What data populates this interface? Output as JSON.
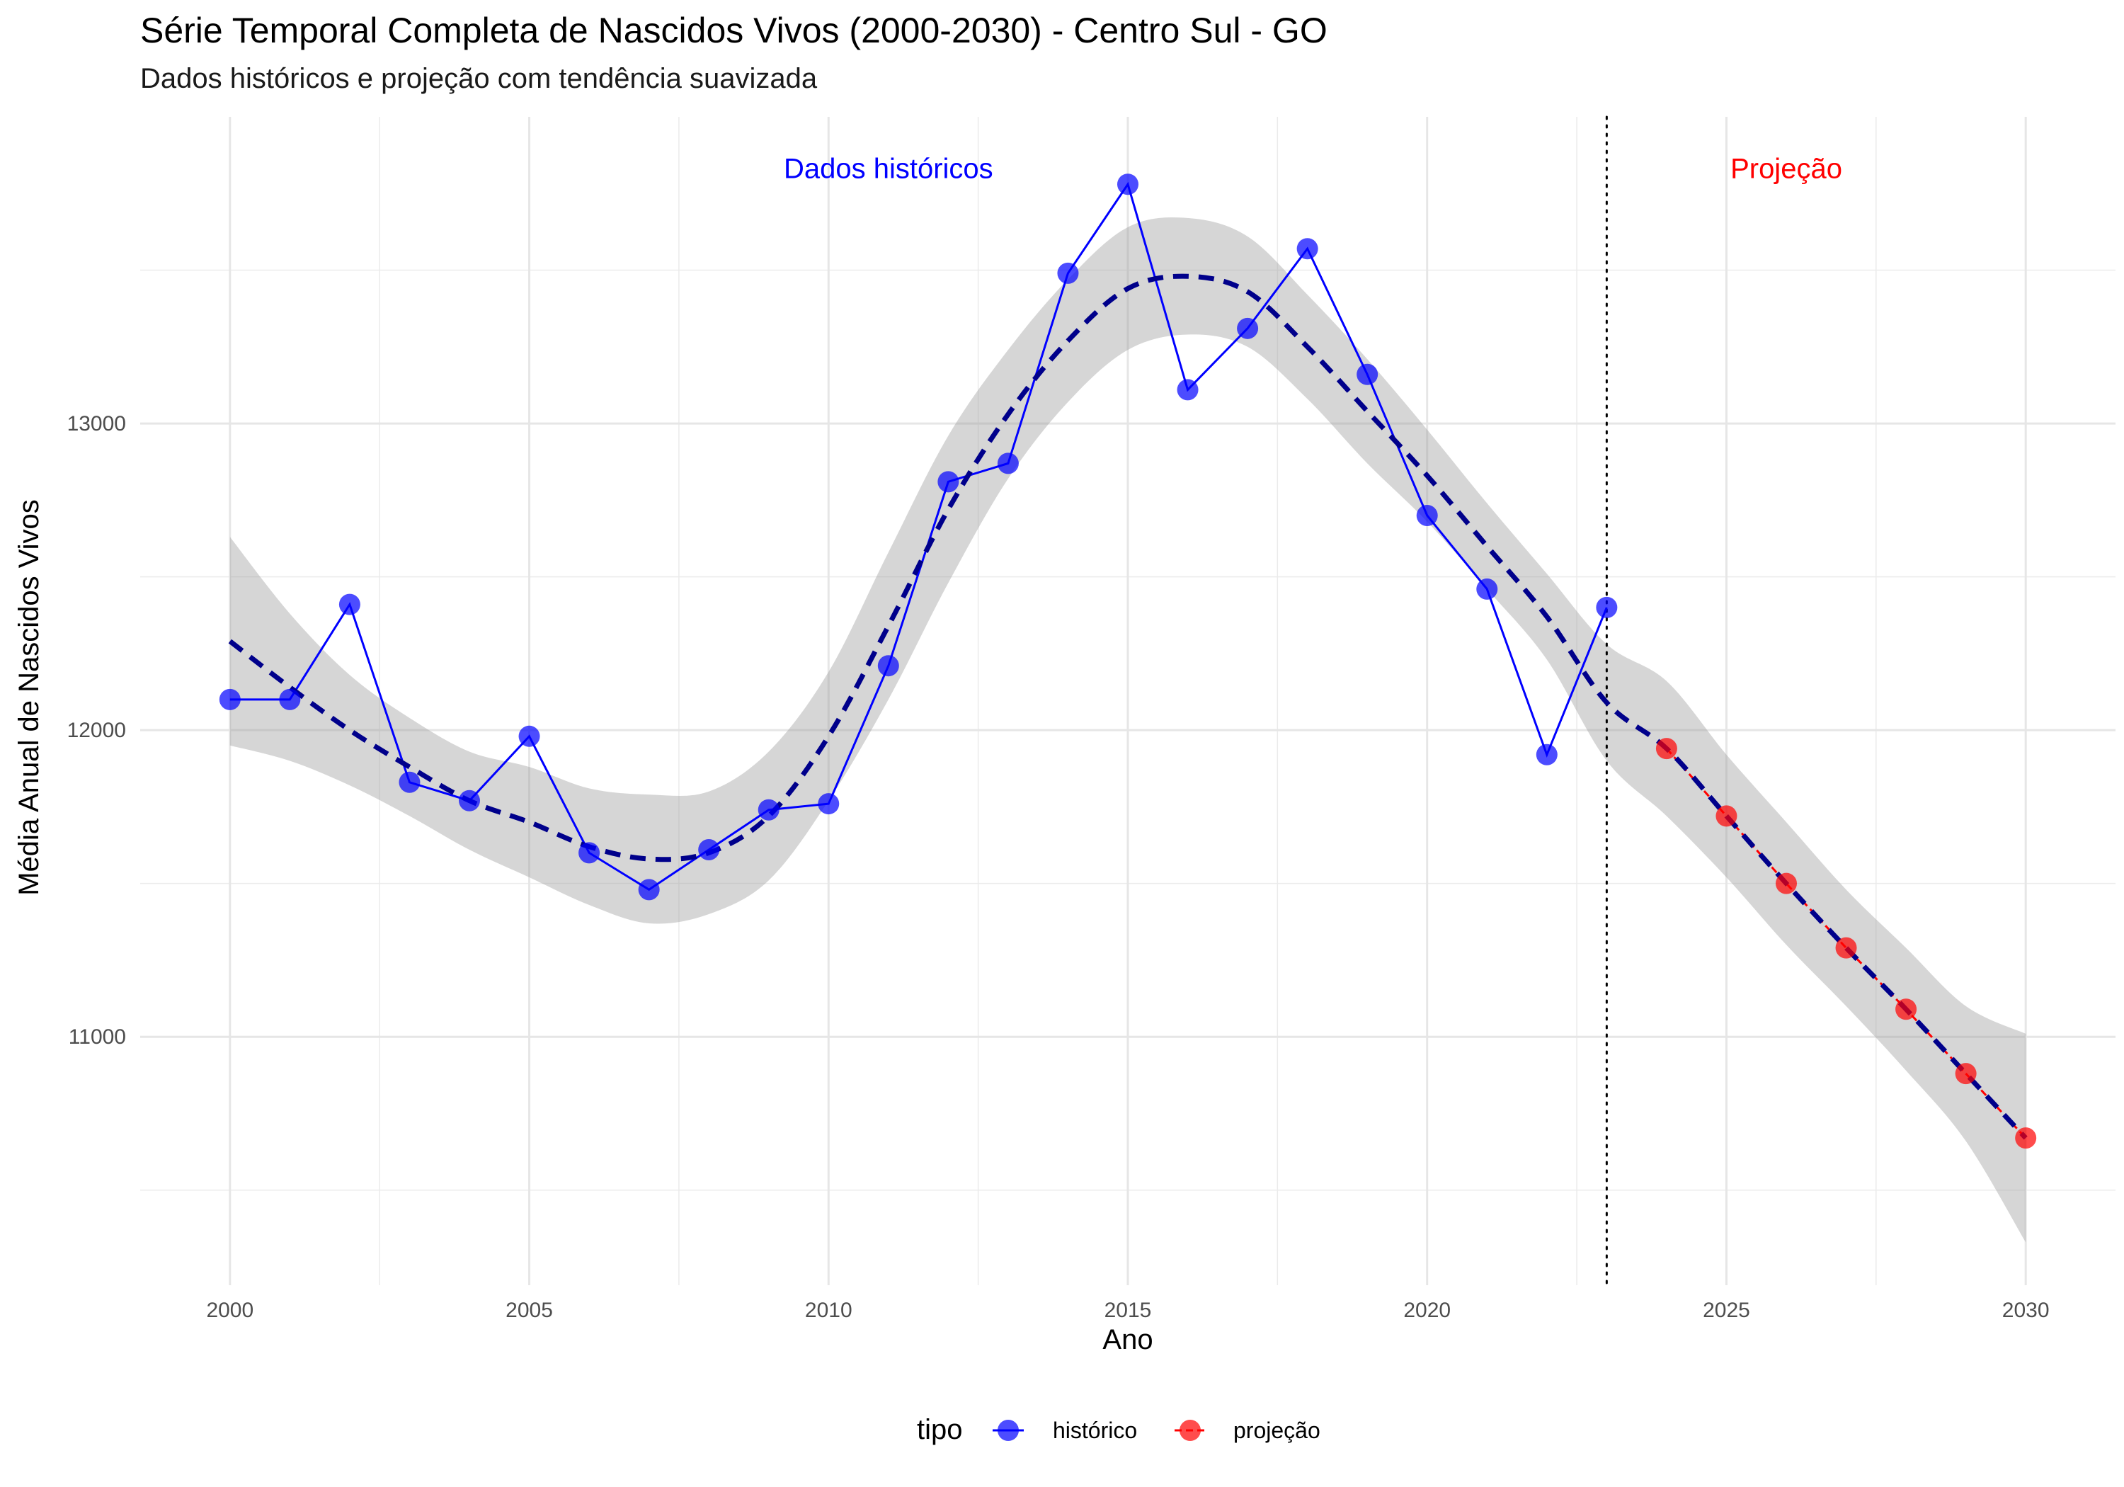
{
  "chart_data": {
    "type": "line",
    "title": "Série Temporal Completa de Nascidos Vivos (2000-2030) -  Centro Sul - GO",
    "subtitle": "Dados históricos e projeção com tendência suavizada",
    "xlabel": "Ano",
    "ylabel": "Média Anual de Nascidos Vivos",
    "xlim": [
      1998.5,
      2031.5
    ],
    "ylim": [
      10190,
      14000
    ],
    "x_ticks": [
      2000,
      2005,
      2010,
      2015,
      2020,
      2025,
      2030
    ],
    "y_ticks": [
      11000,
      12000,
      13000
    ],
    "grid": true,
    "vline_x": 2023,
    "annotations": [
      {
        "text": "Dados históricos",
        "x": 2011,
        "y": 13800,
        "color": "#0000ff"
      },
      {
        "text": "Projeção",
        "x": 2026,
        "y": 13800,
        "color": "#ff0000"
      }
    ],
    "legend": {
      "title": "tipo",
      "position": "bottom"
    },
    "series": [
      {
        "name": "histórico",
        "color": "#0000ff",
        "x": [
          2000,
          2001,
          2002,
          2003,
          2004,
          2005,
          2006,
          2007,
          2008,
          2009,
          2010,
          2011,
          2012,
          2013,
          2014,
          2015,
          2016,
          2017,
          2018,
          2019,
          2020,
          2021,
          2022,
          2023
        ],
        "values": [
          12100,
          12100,
          12410,
          11830,
          11770,
          11980,
          11600,
          11480,
          11610,
          11740,
          11760,
          12210,
          12810,
          12870,
          13490,
          13780,
          13110,
          13310,
          13570,
          13160,
          12700,
          12460,
          11920,
          12400
        ]
      },
      {
        "name": "projeção",
        "color": "#ff0000",
        "x": [
          2024,
          2025,
          2026,
          2027,
          2028,
          2029,
          2030
        ],
        "values": [
          11940,
          11720,
          11500,
          11290,
          11090,
          10880,
          10670
        ]
      }
    ],
    "smooth_trend": {
      "color": "#00008b",
      "x": [
        2000,
        2001,
        2002,
        2003,
        2004,
        2005,
        2006,
        2007,
        2008,
        2009,
        2010,
        2011,
        2012,
        2013,
        2014,
        2015,
        2016,
        2017,
        2018,
        2019,
        2020,
        2021,
        2022,
        2023,
        2024,
        2025,
        2026,
        2027,
        2028,
        2029,
        2030
      ],
      "values": [
        12290,
        12140,
        12000,
        11880,
        11770,
        11700,
        11620,
        11580,
        11600,
        11720,
        11980,
        12340,
        12720,
        13030,
        13270,
        13440,
        13480,
        13430,
        13250,
        13040,
        12830,
        12600,
        12370,
        12090,
        11940,
        11720,
        11500,
        11290,
        11090,
        10880,
        10670
      ],
      "lower": [
        11950,
        11900,
        11820,
        11720,
        11610,
        11520,
        11430,
        11370,
        11400,
        11510,
        11770,
        12100,
        12480,
        12820,
        13070,
        13240,
        13290,
        13250,
        13080,
        12870,
        12680,
        12460,
        12230,
        11900,
        11720,
        11520,
        11300,
        11100,
        10890,
        10660,
        10330
      ],
      "upper": [
        12630,
        12380,
        12180,
        12040,
        11930,
        11880,
        11810,
        11790,
        11800,
        11930,
        12190,
        12580,
        12960,
        13240,
        13470,
        13640,
        13670,
        13610,
        13420,
        13210,
        12980,
        12740,
        12510,
        12280,
        12160,
        11920,
        11700,
        11480,
        11290,
        11100,
        11010
      ]
    }
  }
}
